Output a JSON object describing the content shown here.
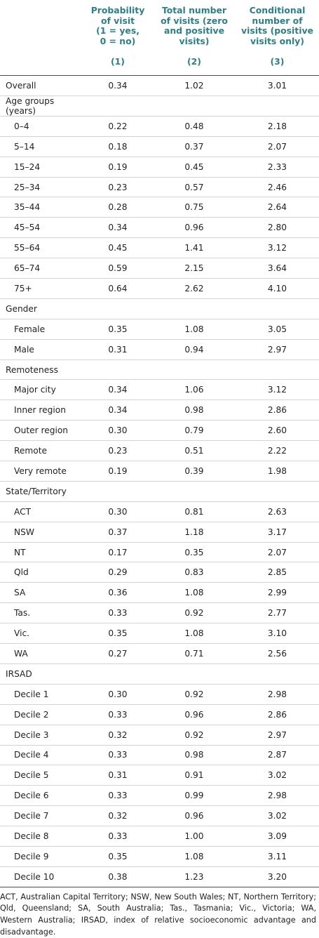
{
  "table": {
    "headers": [
      "",
      "Probability of visit (1 = yes, 0 = no)",
      "Total number of visits (zero and positive visits)",
      "Conditional number of visits (positive visits only)"
    ],
    "header_lines": [
      [],
      [
        "Probability",
        "of visit",
        "(1 = yes,",
        "0 = no)"
      ],
      [
        "Total number",
        "of visits (zero",
        "and positive",
        "visits)"
      ],
      [
        "Conditional",
        "number of",
        "visits (positive",
        "visits only)"
      ]
    ],
    "column_numbers": [
      "",
      "(1)",
      "(2)",
      "(3)"
    ],
    "rows": [
      {
        "label": "Overall",
        "values": [
          "0.34",
          "1.02",
          "3.01"
        ],
        "indent": false
      },
      {
        "label": "Age groups (years)",
        "values": [
          "",
          "",
          ""
        ],
        "indent": false
      },
      {
        "label": "0–4",
        "values": [
          "0.22",
          "0.48",
          "2.18"
        ],
        "indent": true
      },
      {
        "label": "5–14",
        "values": [
          "0.18",
          "0.37",
          "2.07"
        ],
        "indent": true
      },
      {
        "label": "15–24",
        "values": [
          "0.19",
          "0.45",
          "2.33"
        ],
        "indent": true
      },
      {
        "label": "25–34",
        "values": [
          "0.23",
          "0.57",
          "2.46"
        ],
        "indent": true
      },
      {
        "label": "35–44",
        "values": [
          "0.28",
          "0.75",
          "2.64"
        ],
        "indent": true
      },
      {
        "label": "45–54",
        "values": [
          "0.34",
          "0.96",
          "2.80"
        ],
        "indent": true
      },
      {
        "label": "55–64",
        "values": [
          "0.45",
          "1.41",
          "3.12"
        ],
        "indent": true
      },
      {
        "label": "65–74",
        "values": [
          "0.59",
          "2.15",
          "3.64"
        ],
        "indent": true
      },
      {
        "label": "75+",
        "values": [
          "0.64",
          "2.62",
          "4.10"
        ],
        "indent": true
      },
      {
        "label": "Gender",
        "values": [
          "",
          "",
          ""
        ],
        "indent": false
      },
      {
        "label": "Female",
        "values": [
          "0.35",
          "1.08",
          "3.05"
        ],
        "indent": true
      },
      {
        "label": "Male",
        "values": [
          "0.31",
          "0.94",
          "2.97"
        ],
        "indent": true
      },
      {
        "label": "Remoteness",
        "values": [
          "",
          "",
          ""
        ],
        "indent": false
      },
      {
        "label": "Major city",
        "values": [
          "0.34",
          "1.06",
          "3.12"
        ],
        "indent": true
      },
      {
        "label": "Inner region",
        "values": [
          "0.34",
          "0.98",
          "2.86"
        ],
        "indent": true
      },
      {
        "label": "Outer region",
        "values": [
          "0.30",
          "0.79",
          "2.60"
        ],
        "indent": true
      },
      {
        "label": "Remote",
        "values": [
          "0.23",
          "0.51",
          "2.22"
        ],
        "indent": true
      },
      {
        "label": "Very remote",
        "values": [
          "0.19",
          "0.39",
          "1.98"
        ],
        "indent": true
      },
      {
        "label": "State/Territory",
        "values": [
          "",
          "",
          ""
        ],
        "indent": false
      },
      {
        "label": "ACT",
        "values": [
          "0.30",
          "0.81",
          "2.63"
        ],
        "indent": true
      },
      {
        "label": "NSW",
        "values": [
          "0.37",
          "1.18",
          "3.17"
        ],
        "indent": true
      },
      {
        "label": "NT",
        "values": [
          "0.17",
          "0.35",
          "2.07"
        ],
        "indent": true
      },
      {
        "label": "Qld",
        "values": [
          "0.29",
          "0.83",
          "2.85"
        ],
        "indent": true
      },
      {
        "label": "SA",
        "values": [
          "0.36",
          "1.08",
          "2.99"
        ],
        "indent": true
      },
      {
        "label": "Tas.",
        "values": [
          "0.33",
          "0.92",
          "2.77"
        ],
        "indent": true
      },
      {
        "label": "Vic.",
        "values": [
          "0.35",
          "1.08",
          "3.10"
        ],
        "indent": true
      },
      {
        "label": "WA",
        "values": [
          "0.27",
          "0.71",
          "2.56"
        ],
        "indent": true
      },
      {
        "label": "IRSAD",
        "values": [
          "",
          "",
          ""
        ],
        "indent": false
      },
      {
        "label": "Decile 1",
        "values": [
          "0.30",
          "0.92",
          "2.98"
        ],
        "indent": true
      },
      {
        "label": "Decile 2",
        "values": [
          "0.33",
          "0.96",
          "2.86"
        ],
        "indent": true
      },
      {
        "label": "Decile 3",
        "values": [
          "0.32",
          "0.92",
          "2.97"
        ],
        "indent": true
      },
      {
        "label": "Decile 4",
        "values": [
          "0.33",
          "0.98",
          "2.87"
        ],
        "indent": true
      },
      {
        "label": "Decile 5",
        "values": [
          "0.31",
          "0.91",
          "3.02"
        ],
        "indent": true
      },
      {
        "label": "Decile 6",
        "values": [
          "0.33",
          "0.99",
          "2.98"
        ],
        "indent": true
      },
      {
        "label": "Decile 7",
        "values": [
          "0.32",
          "0.96",
          "3.02"
        ],
        "indent": true
      },
      {
        "label": "Decile 8",
        "values": [
          "0.33",
          "1.00",
          "3.09"
        ],
        "indent": true
      },
      {
        "label": "Decile 9",
        "values": [
          "0.35",
          "1.08",
          "3.11"
        ],
        "indent": true
      },
      {
        "label": "Decile 10",
        "values": [
          "0.38",
          "1.23",
          "3.20"
        ],
        "indent": true
      }
    ]
  },
  "footnote": "ACT, Australian Capital Territory; NSW, New South Wales; NT, Northern Territory; Qld, Queensland; SA, South Australia; Tas., Tasmania; Vic., Victoria; WA, Western Australia; IRSAD, index of relative socioeconomic advantage and disadvantage.",
  "colors": {
    "header_text": "#2f7f86",
    "rule": "#4a4a4a",
    "row_divider": "#d4d4d4"
  }
}
